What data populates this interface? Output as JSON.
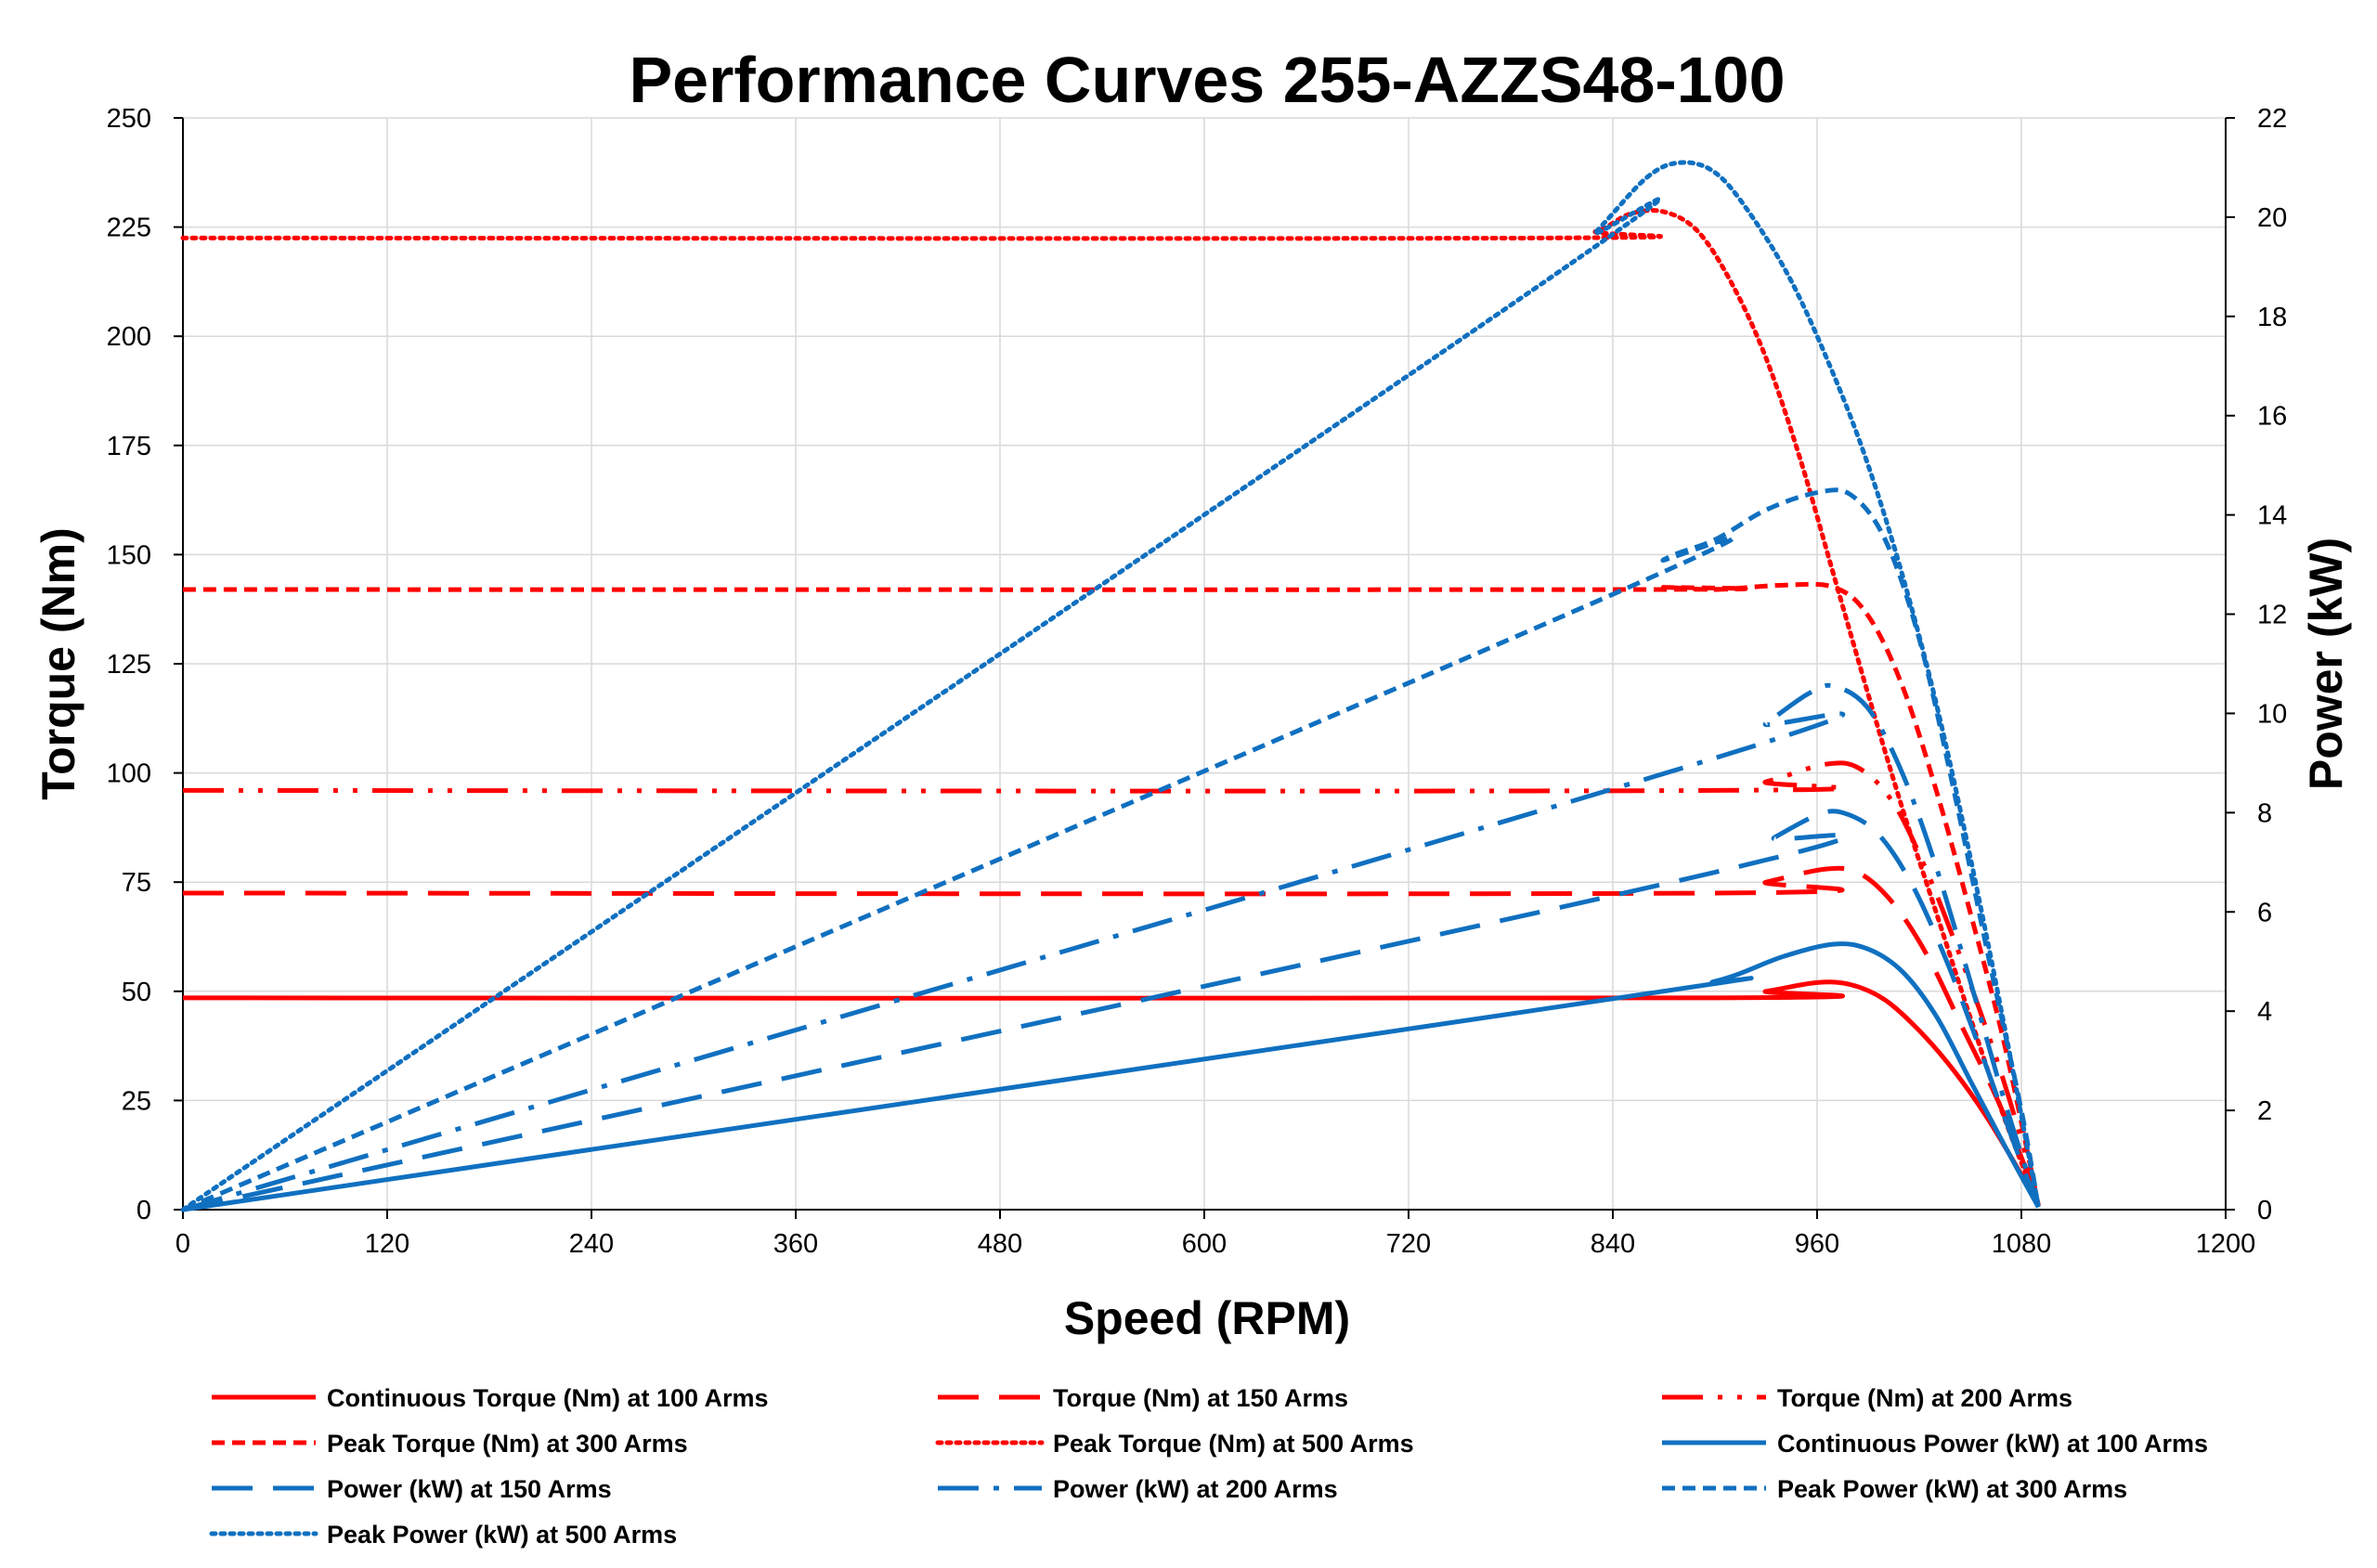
{
  "chart_data": {
    "type": "line",
    "title": "Performance Curves 255-AZZS48-100",
    "xlabel": "Speed (RPM)",
    "ylabel": "Torque (Nm)",
    "y2label": "Power (kW)",
    "xlim": [
      0,
      1200
    ],
    "ylim": [
      0,
      250
    ],
    "y2lim": [
      0,
      22
    ],
    "xticks": [
      0,
      120,
      240,
      360,
      480,
      600,
      720,
      840,
      960,
      1080,
      1200
    ],
    "yticks": [
      0,
      25,
      50,
      75,
      100,
      125,
      150,
      175,
      200,
      225,
      250
    ],
    "y2ticks": [
      0,
      2,
      4,
      6,
      8,
      10,
      12,
      14,
      16,
      18,
      20,
      22
    ],
    "grid": true,
    "legend_position": "bottom",
    "series": [
      {
        "name": "Continuous Torque (Nm) at 100 Arms",
        "axis": "left",
        "color": "#ff0000",
        "dash": "solid",
        "points": [
          [
            0,
            48.5
          ],
          [
            900,
            48.5
          ],
          [
            930,
            50
          ],
          [
            960,
            52
          ],
          [
            980,
            51.5
          ],
          [
            1000,
            48
          ],
          [
            1020,
            41
          ],
          [
            1040,
            32
          ],
          [
            1060,
            21
          ],
          [
            1080,
            8
          ],
          [
            1090,
            1
          ]
        ]
      },
      {
        "name": "Torque (Nm) at 150 Arms",
        "axis": "left",
        "color": "#ff0000",
        "dash": "longdash",
        "points": [
          [
            0,
            72.5
          ],
          [
            900,
            72.5
          ],
          [
            930,
            75
          ],
          [
            965,
            78
          ],
          [
            985,
            77
          ],
          [
            1005,
            70
          ],
          [
            1025,
            58
          ],
          [
            1045,
            42
          ],
          [
            1065,
            26
          ],
          [
            1080,
            12
          ],
          [
            1090,
            1
          ]
        ]
      },
      {
        "name": "Torque (Nm) at 200 Arms",
        "axis": "left",
        "color": "#ff0000",
        "dash": "dashdotdot",
        "points": [
          [
            0,
            96
          ],
          [
            900,
            96
          ],
          [
            930,
            98
          ],
          [
            965,
            102
          ],
          [
            985,
            101
          ],
          [
            1005,
            93
          ],
          [
            1025,
            77
          ],
          [
            1045,
            57
          ],
          [
            1065,
            35
          ],
          [
            1080,
            16
          ],
          [
            1090,
            1
          ]
        ]
      },
      {
        "name": "Peak Torque (Nm) at 300 Arms",
        "axis": "left",
        "color": "#ff0000",
        "dash": "shortdash",
        "points": [
          [
            0,
            142
          ],
          [
            850,
            142
          ],
          [
            870,
            142.5
          ],
          [
            900,
            142
          ],
          [
            940,
            143
          ],
          [
            970,
            142.5
          ],
          [
            990,
            136
          ],
          [
            1010,
            120
          ],
          [
            1030,
            96
          ],
          [
            1050,
            68
          ],
          [
            1070,
            38
          ],
          [
            1090,
            1
          ]
        ]
      },
      {
        "name": "Peak Torque (Nm) at 500 Arms",
        "axis": "left",
        "color": "#ff0000",
        "dash": "dot",
        "points": [
          [
            0,
            222.5
          ],
          [
            800,
            222.5
          ],
          [
            830,
            224
          ],
          [
            850,
            228
          ],
          [
            870,
            228.5
          ],
          [
            890,
            224
          ],
          [
            910,
            212
          ],
          [
            930,
            195
          ],
          [
            950,
            172
          ],
          [
            970,
            145
          ],
          [
            990,
            118
          ],
          [
            1010,
            92
          ],
          [
            1030,
            68
          ],
          [
            1050,
            44
          ],
          [
            1070,
            21
          ],
          [
            1090,
            1
          ]
        ]
      },
      {
        "name": "Continuous Power (kW) at 100 Arms",
        "axis": "right",
        "color": "#1070c0",
        "dash": "solid",
        "points": [
          [
            0,
            0
          ],
          [
            840,
            4.25
          ],
          [
            900,
            4.6
          ],
          [
            940,
            5.1
          ],
          [
            970,
            5.35
          ],
          [
            990,
            5.25
          ],
          [
            1010,
            4.8
          ],
          [
            1030,
            3.9
          ],
          [
            1050,
            2.6
          ],
          [
            1070,
            1.3
          ],
          [
            1090,
            0.05
          ]
        ]
      },
      {
        "name": "Power (kW) at 150 Arms",
        "axis": "right",
        "color": "#1070c0",
        "dash": "longdash",
        "points": [
          [
            0,
            0
          ],
          [
            900,
            6.8
          ],
          [
            935,
            7.5
          ],
          [
            960,
            7.95
          ],
          [
            975,
            8.0
          ],
          [
            995,
            7.6
          ],
          [
            1015,
            6.6
          ],
          [
            1035,
            5.1
          ],
          [
            1055,
            3.3
          ],
          [
            1075,
            1.4
          ],
          [
            1090,
            0.05
          ]
        ]
      },
      {
        "name": "Power (kW) at 200 Arms",
        "axis": "right",
        "color": "#1070c0",
        "dash": "dashdot",
        "points": [
          [
            0,
            0
          ],
          [
            900,
            9.1
          ],
          [
            930,
            9.8
          ],
          [
            955,
            10.4
          ],
          [
            970,
            10.55
          ],
          [
            990,
            10.1
          ],
          [
            1010,
            8.8
          ],
          [
            1030,
            6.9
          ],
          [
            1050,
            4.6
          ],
          [
            1070,
            2.2
          ],
          [
            1090,
            0.05
          ]
        ]
      },
      {
        "name": "Peak Power (kW) at 300 Arms",
        "axis": "right",
        "color": "#1070c0",
        "dash": "shortdash",
        "points": [
          [
            0,
            0
          ],
          [
            840,
            12.4
          ],
          [
            870,
            13.1
          ],
          [
            900,
            13.5
          ],
          [
            930,
            14.1
          ],
          [
            960,
            14.45
          ],
          [
            980,
            14.4
          ],
          [
            1000,
            13.5
          ],
          [
            1020,
            11.5
          ],
          [
            1040,
            8.5
          ],
          [
            1060,
            5.2
          ],
          [
            1080,
            2.0
          ],
          [
            1090,
            0.05
          ]
        ]
      },
      {
        "name": "Peak Power (kW) at 500 Arms",
        "axis": "right",
        "color": "#1070c0",
        "dash": "dot",
        "points": [
          [
            0,
            0
          ],
          [
            800,
            18.7
          ],
          [
            830,
            19.7
          ],
          [
            860,
            20.8
          ],
          [
            880,
            21.1
          ],
          [
            900,
            20.9
          ],
          [
            920,
            20.1
          ],
          [
            945,
            18.7
          ],
          [
            970,
            16.8
          ],
          [
            990,
            15.0
          ],
          [
            1010,
            12.8
          ],
          [
            1030,
            10.2
          ],
          [
            1050,
            7.1
          ],
          [
            1070,
            3.7
          ],
          [
            1090,
            0.05
          ]
        ]
      }
    ]
  }
}
